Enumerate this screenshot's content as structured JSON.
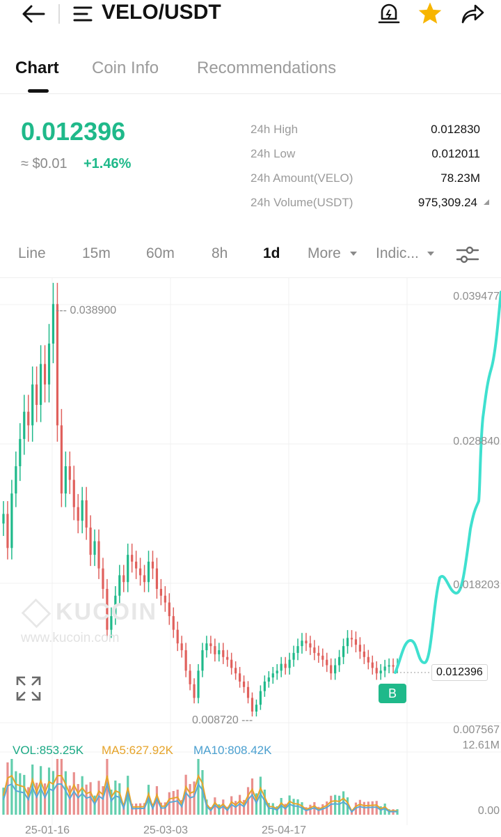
{
  "header": {
    "pair": "VELO/USDT",
    "icons": [
      "back-arrow-icon",
      "menu-icon",
      "price-alert-icon",
      "star-icon",
      "share-icon"
    ],
    "accent": "#1fb98a",
    "star_color": "#f7b500"
  },
  "tabs": [
    {
      "label": "Chart",
      "active": true
    },
    {
      "label": "Coin Info",
      "active": false
    },
    {
      "label": "Recommendations",
      "active": false
    }
  ],
  "ticker": {
    "price": "0.012396",
    "approx": "≈ $0.01",
    "change": "+1.46%",
    "stats": [
      {
        "label": "24h High",
        "value": "0.012830"
      },
      {
        "label": "24h Low",
        "value": "0.012011"
      },
      {
        "label": "24h Amount(VELO)",
        "value": "78.23M"
      },
      {
        "label": "24h Volume(USDT)",
        "value": "975,309.24"
      }
    ]
  },
  "timeframes": {
    "items": [
      "Line",
      "15m",
      "60m",
      "8h",
      "1d",
      "More",
      "Indic..."
    ],
    "active": "1d"
  },
  "watermark": {
    "brand": "KUCOIN",
    "url": "www.kucoin.com"
  },
  "chart_data": {
    "type": "candlestick",
    "price_axis_labels": [
      "0.039477",
      "0.028840",
      "0.018203",
      "0.012396",
      "0.007567"
    ],
    "high_marker": "0.038900",
    "low_marker": "0.008720",
    "last_price_label": "0.012396",
    "buy_marker": "B",
    "date_labels": [
      "25-01-16",
      "25-03-03",
      "25-04-17"
    ],
    "volume_axis_labels": [
      "12.61M",
      "0.00"
    ],
    "volume_legend": {
      "vol": "VOL:853.25K",
      "ma5": "MA5:627.92K",
      "ma10": "MA10:808.42K"
    },
    "colors": {
      "up": "#1fb98a",
      "down": "#e0605c",
      "drawn_line": "#3fe0cf",
      "ma5": "#e6a42b",
      "ma10": "#5aa9d6"
    },
    "closes": [
      0.0235,
      0.021,
      0.025,
      0.027,
      0.029,
      0.031,
      0.03,
      0.033,
      0.0315,
      0.0345,
      0.033,
      0.036,
      0.0389,
      0.03,
      0.025,
      0.027,
      0.026,
      0.024,
      0.023,
      0.0245,
      0.0225,
      0.0205,
      0.0215,
      0.0195,
      0.018,
      0.015,
      0.016,
      0.0175,
      0.019,
      0.0185,
      0.0205,
      0.02,
      0.0195,
      0.019,
      0.0185,
      0.02,
      0.0195,
      0.018,
      0.0175,
      0.017,
      0.016,
      0.015,
      0.014,
      0.0135,
      0.012,
      0.011,
      0.01,
      0.012,
      0.0135,
      0.014,
      0.0138,
      0.0132,
      0.0135,
      0.013,
      0.0128,
      0.0122,
      0.0118,
      0.0112,
      0.0108,
      0.01,
      0.009,
      0.0095,
      0.0105,
      0.0112,
      0.0115,
      0.0118,
      0.012,
      0.0125,
      0.0122,
      0.0128,
      0.0133,
      0.0138,
      0.0142,
      0.014,
      0.0137,
      0.0133,
      0.0131,
      0.0128,
      0.0124,
      0.0118,
      0.0124,
      0.013,
      0.0138,
      0.0144,
      0.0143,
      0.0139,
      0.0134,
      0.013,
      0.0126,
      0.0122,
      0.0118,
      0.012,
      0.0123,
      0.0124,
      0.0123,
      0.0124
    ]
  }
}
